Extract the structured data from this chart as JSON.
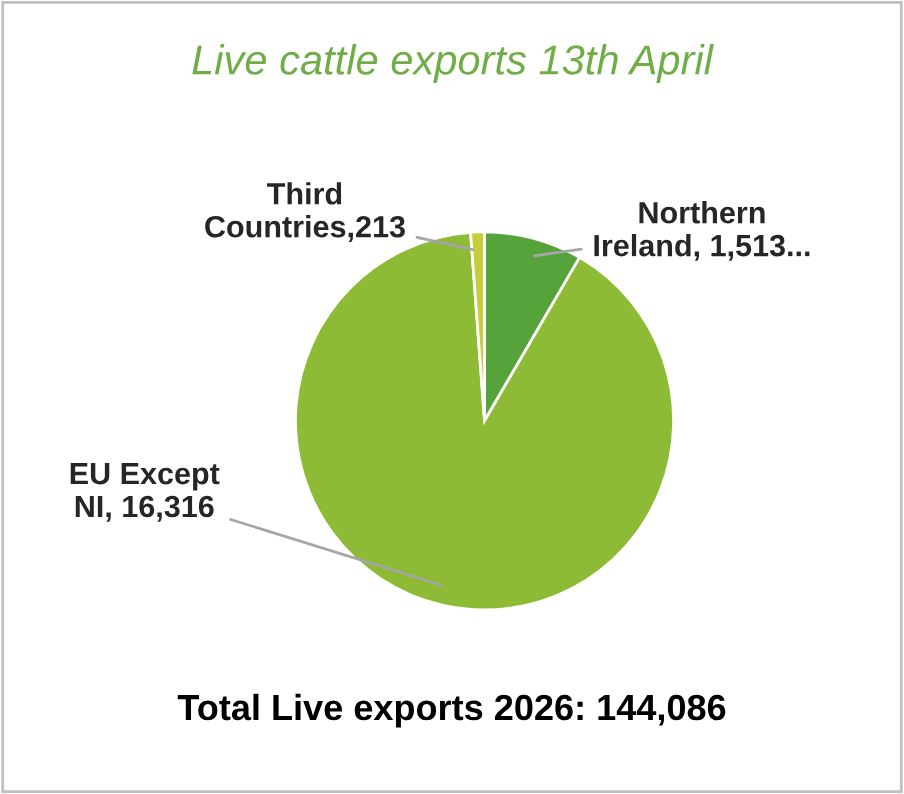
{
  "chart_data": {
    "type": "pie",
    "title": "Live cattle exports 13th April",
    "categories": [
      "Northern\nIreland",
      "EU Except\nNI",
      "Third\nCountries"
    ],
    "values": [
      1513,
      16316,
      213
    ],
    "value_labels": [
      " 1,513...",
      " 16,316",
      "213"
    ],
    "colors": [
      "#56a33b",
      "#8dbb35",
      "#c4cd3b"
    ],
    "annotations": [
      "Total Live exports 2026: 144,086"
    ]
  }
}
